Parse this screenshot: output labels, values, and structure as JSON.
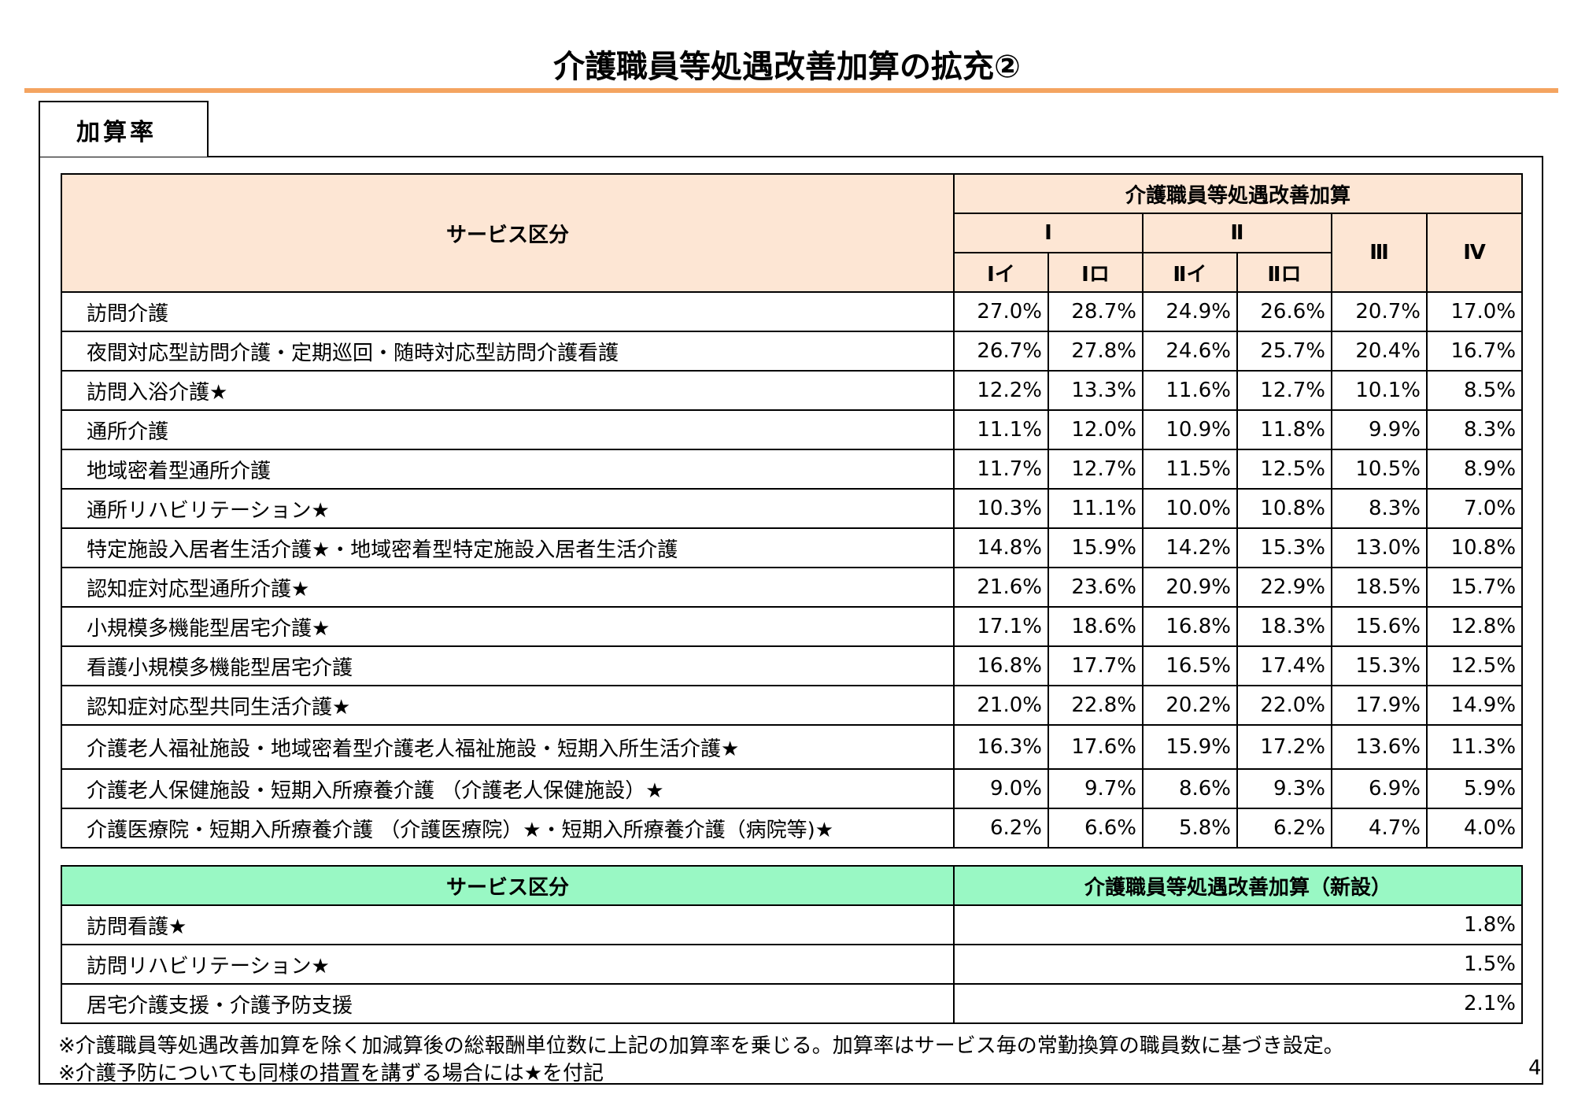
{
  "title": "介護職員等処遇改善加算の拡充②",
  "tab_label": "加算率",
  "main_table": {
    "service_header": "サービス区分",
    "group_header": "介護職員等処遇改善加算",
    "level_headers": [
      "Ⅰ",
      "Ⅱ",
      "Ⅲ",
      "Ⅳ"
    ],
    "sub_headers": [
      "Ⅰイ",
      "Ⅰロ",
      "Ⅱイ",
      "Ⅱロ"
    ],
    "rows": [
      {
        "service": "訪問介護",
        "values": [
          "27.0%",
          "28.7%",
          "24.9%",
          "26.6%",
          "20.7%",
          "17.0%"
        ]
      },
      {
        "service": "夜間対応型訪問介護・定期巡回・随時対応型訪問介護看護",
        "values": [
          "26.7%",
          "27.8%",
          "24.6%",
          "25.7%",
          "20.4%",
          "16.7%"
        ]
      },
      {
        "service": "訪問入浴介護★",
        "values": [
          "12.2%",
          "13.3%",
          "11.6%",
          "12.7%",
          "10.1%",
          "8.5%"
        ]
      },
      {
        "service": "通所介護",
        "values": [
          "11.1%",
          "12.0%",
          "10.9%",
          "11.8%",
          "9.9%",
          "8.3%"
        ]
      },
      {
        "service": "地域密着型通所介護",
        "values": [
          "11.7%",
          "12.7%",
          "11.5%",
          "12.5%",
          "10.5%",
          "8.9%"
        ]
      },
      {
        "service": "通所リハビリテーション★",
        "values": [
          "10.3%",
          "11.1%",
          "10.0%",
          "10.8%",
          "8.3%",
          "7.0%"
        ]
      },
      {
        "service": "特定施設入居者生活介護★・地域密着型特定施設入居者生活介護",
        "values": [
          "14.8%",
          "15.9%",
          "14.2%",
          "15.3%",
          "13.0%",
          "10.8%"
        ]
      },
      {
        "service": "認知症対応型通所介護★",
        "values": [
          "21.6%",
          "23.6%",
          "20.9%",
          "22.9%",
          "18.5%",
          "15.7%"
        ]
      },
      {
        "service": "小規模多機能型居宅介護★",
        "values": [
          "17.1%",
          "18.6%",
          "16.8%",
          "18.3%",
          "15.6%",
          "12.8%"
        ]
      },
      {
        "service": "看護小規模多機能型居宅介護",
        "values": [
          "16.8%",
          "17.7%",
          "16.5%",
          "17.4%",
          "15.3%",
          "12.5%"
        ]
      },
      {
        "service": "認知症対応型共同生活介護★",
        "values": [
          "21.0%",
          "22.8%",
          "20.2%",
          "22.0%",
          "17.9%",
          "14.9%"
        ]
      },
      {
        "service": "介護老人福祉施設・地域密着型介護老人福祉施設・短期入所生活介護★",
        "values": [
          "16.3%",
          "17.6%",
          "15.9%",
          "17.2%",
          "13.6%",
          "11.3%"
        ]
      },
      {
        "service": "介護老人保健施設・短期入所療養介護 （介護老人保健施設）★",
        "values": [
          "9.0%",
          "9.7%",
          "8.6%",
          "9.3%",
          "6.9%",
          "5.9%"
        ]
      },
      {
        "service": "介護医療院・短期入所療養介護 （介護医療院）★・短期入所療養介護（病院等)★",
        "values": [
          "6.2%",
          "6.6%",
          "5.8%",
          "6.2%",
          "4.7%",
          "4.0%"
        ]
      }
    ]
  },
  "new_table": {
    "service_header": "サービス区分",
    "rate_header": "介護職員等処遇改善加算（新設）",
    "rows": [
      {
        "service": "訪問看護★",
        "value": "1.8%"
      },
      {
        "service": "訪問リハビリテーション★",
        "value": "1.5%"
      },
      {
        "service": "居宅介護支援・介護予防支援",
        "value": "2.1%"
      }
    ]
  },
  "notes": [
    "※介護職員等処遇改善加算を除く加減算後の総報酬単位数に上記の加算率を乗じる。加算率はサービス毎の常勤換算の職員数に基づき設定。",
    "※介護予防についても同様の措置を講ずる場合には★を付記"
  ],
  "page_number": "4",
  "colors": {
    "accent_rule": "#f4a460",
    "header_bg": "#fde6d4",
    "new_header_bg": "#99f8c4"
  }
}
